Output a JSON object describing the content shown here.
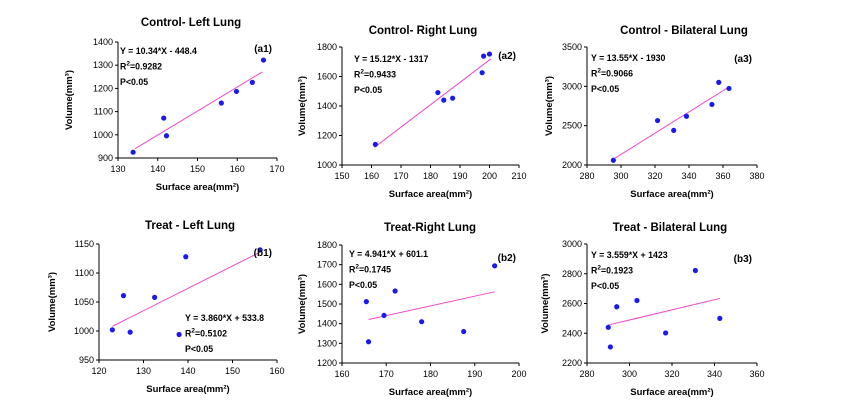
{
  "figure": {
    "background": "#ffffff",
    "point_color": "#1a1aee",
    "line_color": "#ee44cc"
  },
  "chart_data": [
    {
      "type": "scatter",
      "panel_label": "(a1)",
      "title": "Control- Left Lung",
      "xlabel": "Surface area(mm²)",
      "ylabel": "Volume(mm³)",
      "xlim": [
        130,
        170
      ],
      "ylim": [
        900,
        1400
      ],
      "xticks": [
        130,
        140,
        150,
        160,
        170
      ],
      "yticks": [
        900,
        1000,
        1100,
        1200,
        1300,
        1400
      ],
      "points": [
        [
          133.8,
          925
        ],
        [
          141.5,
          1072
        ],
        [
          142.2,
          996
        ],
        [
          156,
          1137
        ],
        [
          159.8,
          1187
        ],
        [
          163.8,
          1226
        ],
        [
          166.6,
          1322
        ]
      ],
      "fit_line": [
        [
          134.3,
          940
        ],
        [
          166.3,
          1271
        ]
      ],
      "annotations": {
        "equation": "Y = 10.34*X - 448.4",
        "r2_prefix": "R",
        "r2_sup": "2",
        "r2_value": "=0.9282",
        "p": "P<0.05"
      }
    },
    {
      "type": "scatter",
      "panel_label": "(a2)",
      "title": "Control- Right Lung",
      "xlabel": "Surface area(mm²)",
      "ylabel": "Volume(mm³)",
      "xlim": [
        150,
        210
      ],
      "ylim": [
        1000,
        1800
      ],
      "xticks": [
        150,
        160,
        170,
        180,
        190,
        200,
        210
      ],
      "yticks": [
        1000,
        1200,
        1400,
        1600,
        1800
      ],
      "points": [
        [
          161.3,
          1140
        ],
        [
          182.5,
          1491
        ],
        [
          184.5,
          1440
        ],
        [
          187.5,
          1453
        ],
        [
          197.5,
          1626
        ],
        [
          198,
          1738
        ],
        [
          200,
          1752
        ]
      ],
      "fit_line": [
        [
          161,
          1120
        ],
        [
          200.5,
          1720
        ]
      ],
      "annotations": {
        "equation": "Y = 15.12*X - 1317",
        "r2_prefix": "R",
        "r2_sup": "2",
        "r2_value": "=0.9433",
        "p": "P<0.05"
      }
    },
    {
      "type": "scatter",
      "panel_label": "(a3)",
      "title": "Control - Bilateral Lung",
      "xlabel": "Surface area(mm²)",
      "ylabel": "Volume(mm³)",
      "xlim": [
        280,
        380
      ],
      "ylim": [
        2000,
        3500
      ],
      "xticks": [
        280,
        300,
        320,
        340,
        360,
        380
      ],
      "yticks": [
        2000,
        2500,
        3000,
        3500
      ],
      "points": [
        [
          295.5,
          2060
        ],
        [
          321.5,
          2565
        ],
        [
          331,
          2440
        ],
        [
          338.5,
          2620
        ],
        [
          353.5,
          2770
        ],
        [
          357.5,
          3050
        ],
        [
          363.5,
          2973
        ]
      ],
      "fit_line": [
        [
          295.5,
          2074
        ],
        [
          363,
          2985
        ]
      ],
      "annotations": {
        "equation": "Y = 13.55*X - 1930",
        "r2_prefix": "R",
        "r2_sup": "2",
        "r2_value": "=0.9066",
        "p": "P<0.05"
      }
    },
    {
      "type": "scatter",
      "panel_label": "(b1)",
      "title": "Treat - Left Lung",
      "xlabel": "Surface area(mm²)",
      "ylabel": "Volume(mm³)",
      "xlim": [
        120,
        160
      ],
      "ylim": [
        950,
        1150
      ],
      "xticks": [
        120,
        130,
        140,
        150,
        160
      ],
      "yticks": [
        950,
        1000,
        1050,
        1100,
        1150
      ],
      "points": [
        [
          123,
          1002
        ],
        [
          125.5,
          1061
        ],
        [
          127,
          998
        ],
        [
          132.5,
          1058
        ],
        [
          138,
          994
        ],
        [
          139.5,
          1128
        ],
        [
          156.2,
          1140
        ]
      ],
      "fit_line": [
        [
          123,
          1008
        ],
        [
          156.2,
          1136
        ]
      ],
      "annotations": {
        "equation": "Y = 3.860*X + 533.8",
        "r2_prefix": "R",
        "r2_sup": "2",
        "r2_value": "=0.5102",
        "p": "P<0.05"
      }
    },
    {
      "type": "scatter",
      "panel_label": "(b2)",
      "title": "Treat-Right Lung",
      "xlabel": "Surface area(mm²)",
      "ylabel": "Volume(mm³)",
      "xlim": [
        160,
        200
      ],
      "ylim": [
        1200,
        1800
      ],
      "xticks": [
        160,
        170,
        180,
        190,
        200
      ],
      "yticks": [
        1200,
        1300,
        1400,
        1500,
        1600,
        1700,
        1800
      ],
      "points": [
        [
          165.5,
          1512
        ],
        [
          166,
          1308
        ],
        [
          169.5,
          1442
        ],
        [
          172,
          1566
        ],
        [
          178,
          1410
        ],
        [
          187.5,
          1360
        ],
        [
          194.5,
          1694
        ]
      ],
      "fit_line": [
        [
          166,
          1421
        ],
        [
          194.5,
          1562
        ]
      ],
      "annotations": {
        "equation": "Y = 4.941*X + 601.1",
        "r2_prefix": "R",
        "r2_sup": "2",
        "r2_value": "=0.1745",
        "p": "P<0.05"
      }
    },
    {
      "type": "scatter",
      "panel_label": "(b3)",
      "title": "Treat - Bilateral Lung",
      "xlabel": "Surface area(mm²)",
      "ylabel": "Volume(mm³)",
      "xlim": [
        280,
        360
      ],
      "ylim": [
        2200,
        3000
      ],
      "xticks": [
        280,
        300,
        320,
        340,
        360
      ],
      "yticks": [
        2200,
        2400,
        2600,
        2800,
        3000
      ],
      "points": [
        [
          290,
          2440
        ],
        [
          291,
          2308
        ],
        [
          294,
          2578
        ],
        [
          303.5,
          2620
        ],
        [
          317,
          2402
        ],
        [
          331,
          2822
        ],
        [
          342.5,
          2500
        ]
      ],
      "fit_line": [
        [
          290,
          2455
        ],
        [
          342.5,
          2634
        ]
      ],
      "annotations": {
        "equation": "Y = 3.559*X + 1423",
        "r2_prefix": "R",
        "r2_sup": "2",
        "r2_value": "=0.1923",
        "p": "P<0.05"
      }
    }
  ]
}
